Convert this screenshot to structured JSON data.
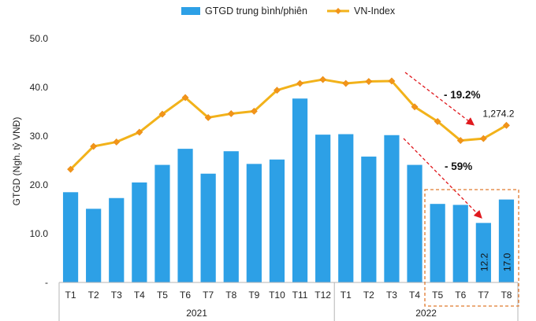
{
  "colors": {
    "bar": "#2DA0E6",
    "line": "#F2B21A",
    "marker": "#F2941A",
    "annotation": "#E0191E",
    "box": "#E07A2E"
  },
  "legend": {
    "bar_label": "GTGD trung bình/phiên",
    "line_label": "VN-Index"
  },
  "chart_data": {
    "type": "bar",
    "ylabel": "GTGD (Ngh. tỷ VNĐ)",
    "ylim": [
      0,
      50
    ],
    "yticks": [
      "-",
      "10.0",
      "20.0",
      "30.0",
      "40.0",
      "50.0"
    ],
    "categories": [
      "T1",
      "T2",
      "T3",
      "T4",
      "T5",
      "T6",
      "T7",
      "T8",
      "T9",
      "T10",
      "T11",
      "T12",
      "T1",
      "T2",
      "T3",
      "T4",
      "T5",
      "T6",
      "T7",
      "T8"
    ],
    "year_groups": [
      {
        "label": "2021",
        "count": 12
      },
      {
        "label": "2022",
        "count": 8
      }
    ],
    "series": [
      {
        "name": "GTGD trung bình/phiên",
        "type": "bar",
        "values": [
          18.5,
          15.1,
          17.3,
          20.5,
          24.1,
          27.4,
          22.3,
          26.9,
          24.3,
          25.2,
          37.7,
          30.3,
          30.4,
          25.8,
          30.2,
          24.1,
          16.1,
          15.9,
          12.2,
          17.0
        ]
      },
      {
        "name": "VN-Index",
        "type": "line",
        "values": [
          23.2,
          27.9,
          28.8,
          30.8,
          34.5,
          37.9,
          33.8,
          34.6,
          35.1,
          39.4,
          40.8,
          41.6,
          40.8,
          41.2,
          41.3,
          36.0,
          33.0,
          29.1,
          29.5,
          32.2
        ]
      }
    ],
    "data_labels": [
      {
        "index": 18,
        "text": "12.2"
      },
      {
        "index": 19,
        "text": "17.0"
      }
    ],
    "line_label": {
      "index": 19,
      "text": "1,274.2"
    },
    "annotations": [
      "- 19.2%",
      "- 59%"
    ]
  }
}
